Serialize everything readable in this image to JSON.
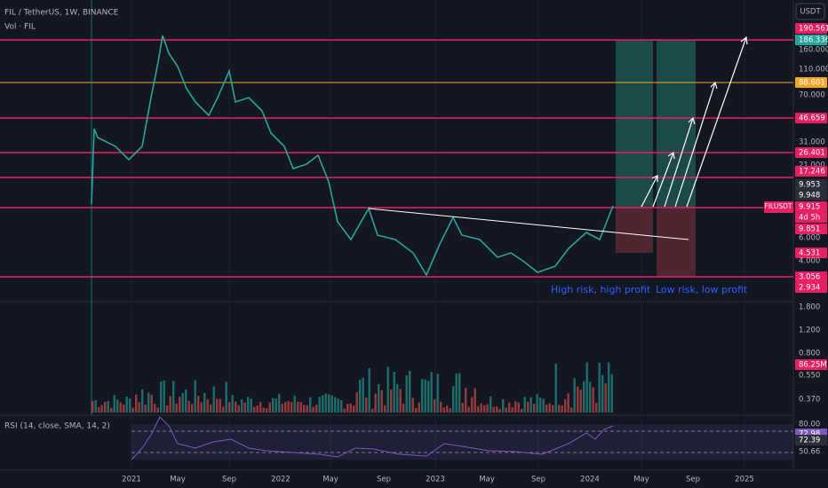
{
  "header": {
    "symbol": "FIL / TetherUS, 1W, BINANCE",
    "volume": "Vol · FIL",
    "currency": "USDT"
  },
  "price_axis": [
    "190.561",
    "186.336",
    "160.000",
    "110.000",
    "88.601",
    "70.000",
    "46.659",
    "31.000",
    "26.401",
    "21.000",
    "17.246",
    "9.953",
    "9.948",
    "9.915",
    "4d 5h",
    "9.851",
    "6.000",
    "4.531",
    "4.000",
    "3.056",
    "2.934"
  ],
  "ticker_label": "FILUSDT",
  "volume_axis": [
    "1.800",
    "1.200",
    "0.800",
    "86.25M",
    "0.550",
    "0.370"
  ],
  "rsi": {
    "title": "RSI (14, close, SMA, 14, 2)",
    "axis": [
      "80.00",
      "72.98",
      "72.39",
      "50.66"
    ]
  },
  "time_axis": [
    "2021",
    "May",
    "Sep",
    "2022",
    "May",
    "Sep",
    "2023",
    "May",
    "Sep",
    "2024",
    "May",
    "Sep",
    "2025"
  ],
  "annotations": [
    "High risk, high profit",
    "Low risk, low profit"
  ]
}
